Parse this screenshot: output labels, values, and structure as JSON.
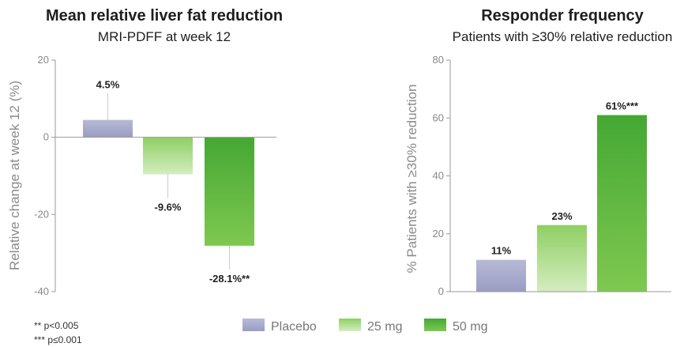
{
  "colors": {
    "placebo": "#a8abcc",
    "mg25": "#9ed47a",
    "mg50": "#5ab83e",
    "axis": "#999999"
  },
  "legend": [
    {
      "label": "Placebo",
      "color_key": "placebo"
    },
    {
      "label": "25 mg",
      "color_key": "mg25"
    },
    {
      "label": "50 mg",
      "color_key": "mg50"
    }
  ],
  "footnotes": [
    "** p<0.005",
    "*** p≤0.001"
  ],
  "chart_data": [
    {
      "type": "bar",
      "title": "Mean relative liver fat reduction",
      "subtitle": "MRI-PDFF at week 12",
      "ylabel": "Relative change at week 12 (%)",
      "xlabel": "",
      "categories": [
        "Placebo",
        "25 mg",
        "50 mg"
      ],
      "values": [
        4.5,
        -9.6,
        -28.1
      ],
      "data_labels": [
        "4.5%",
        "-9.6%",
        "-28.1%**"
      ],
      "ylim": [
        -40,
        20
      ],
      "yticks": [
        20,
        0,
        -20,
        -40
      ],
      "grid": false
    },
    {
      "type": "bar",
      "title": "Responder frequency",
      "subtitle": "Patients with ≥30% relative reduction",
      "ylabel": "% Patients with ≥30% reduction",
      "xlabel": "",
      "categories": [
        "Placebo",
        "25 mg",
        "50 mg"
      ],
      "values": [
        11,
        23,
        61
      ],
      "data_labels": [
        "11%",
        "23%",
        "61%***"
      ],
      "ylim": [
        0,
        80
      ],
      "yticks": [
        80,
        60,
        40,
        20,
        0
      ],
      "grid": false
    }
  ]
}
